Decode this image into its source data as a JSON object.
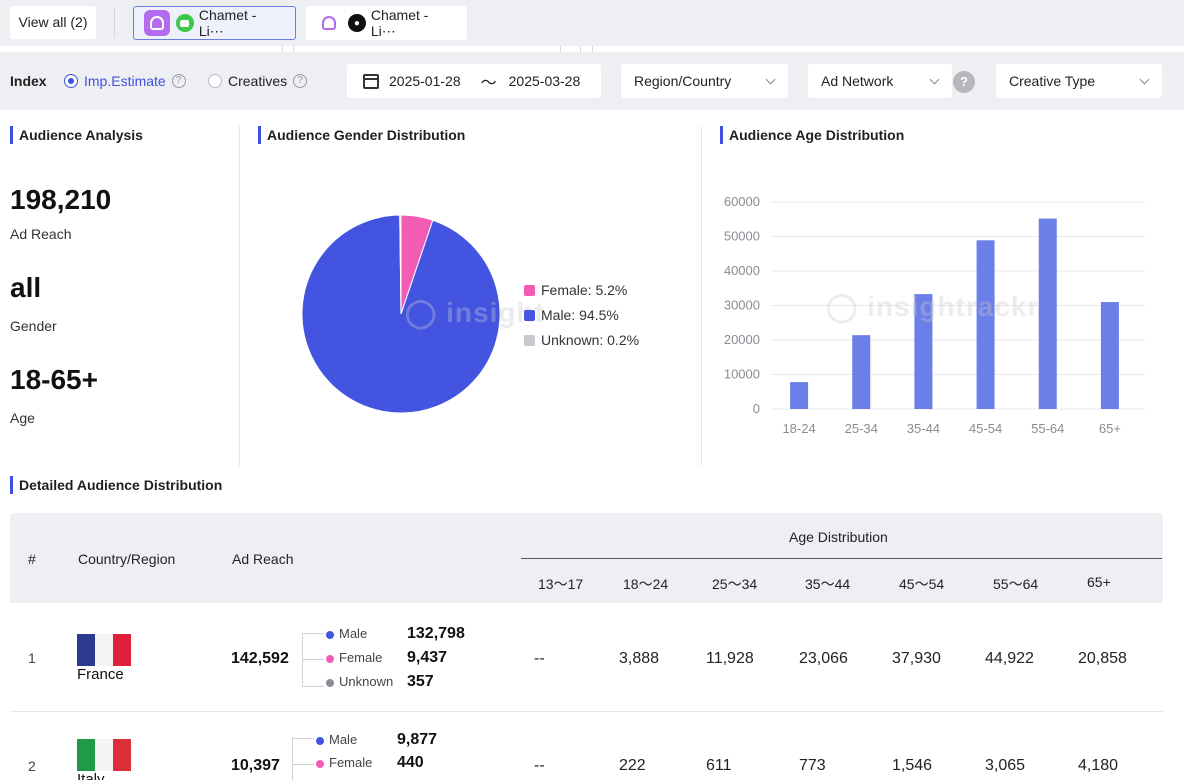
{
  "tabs": {
    "view_all": "View all (2)",
    "items": [
      {
        "label": "Chamet - Li⋯",
        "platform": "android",
        "active": true
      },
      {
        "label": "Chamet - Li⋯",
        "platform": "ios",
        "active": false
      }
    ]
  },
  "filters": {
    "index_label": "Index",
    "radio_imp": "Imp.Estimate",
    "radio_creatives": "Creatives",
    "date_start": "2025-01-28",
    "date_sep": "〜",
    "date_end": "2025-03-28",
    "region": "Region/Country",
    "ad_network": "Ad Network",
    "creative_type": "Creative Type",
    "help": "?"
  },
  "audience_analysis": {
    "title": "Audience Analysis",
    "reach_value": "198,210",
    "reach_label": "Ad Reach",
    "gender_value": "all",
    "gender_label": "Gender",
    "age_value": "18-65+",
    "age_label": "Age"
  },
  "gender_chart": {
    "title": "Audience Gender Distribution",
    "legend": [
      "Female: 5.2%",
      "Male: 94.5%",
      "Unknown: 0.2%"
    ],
    "colors": {
      "female": "#f25cb5",
      "male": "#4355e0",
      "unknown": "#c8c9cf"
    }
  },
  "age_chart": {
    "title": "Audience Age Distribution",
    "bar_color": "#6b7fe8"
  },
  "chart_data": [
    {
      "type": "pie",
      "categories": [
        "Female",
        "Male",
        "Unknown"
      ],
      "values": [
        5.2,
        94.5,
        0.2
      ]
    },
    {
      "type": "bar",
      "categories": [
        "18-24",
        "25-34",
        "35-44",
        "45-54",
        "55-64",
        "65+"
      ],
      "values": [
        7800,
        21400,
        33300,
        48900,
        55200,
        31000
      ],
      "yticks": [
        "60000",
        "50000",
        "40000",
        "30000",
        "20000",
        "10000",
        "0"
      ],
      "ylim": [
        0,
        60000
      ],
      "grid": true
    }
  ],
  "detail": {
    "title": "Detailed Audience Distribution",
    "headers": {
      "rank": "#",
      "country": "Country/Region",
      "reach": "Ad Reach",
      "age_group": "Age Distribution",
      "ages": [
        "13〜17",
        "18〜24",
        "25〜34",
        "35〜44",
        "45〜54",
        "55〜64",
        "65+"
      ]
    },
    "gender_labels": [
      "Male",
      "Female",
      "Unknown"
    ],
    "rows": [
      {
        "rank": "1",
        "country": "France",
        "reach": "142,592",
        "male": "132,798",
        "female": "9,437",
        "unknown": "357",
        "ages": [
          "--",
          "3,888",
          "11,928",
          "23,066",
          "37,930",
          "44,922",
          "20,858"
        ]
      },
      {
        "rank": "2",
        "country": "Italy",
        "reach": "10,397",
        "male": "9,877",
        "female": "440",
        "ages": [
          "--",
          "222",
          "611",
          "773",
          "1,546",
          "3,065",
          "4,180"
        ]
      }
    ]
  }
}
